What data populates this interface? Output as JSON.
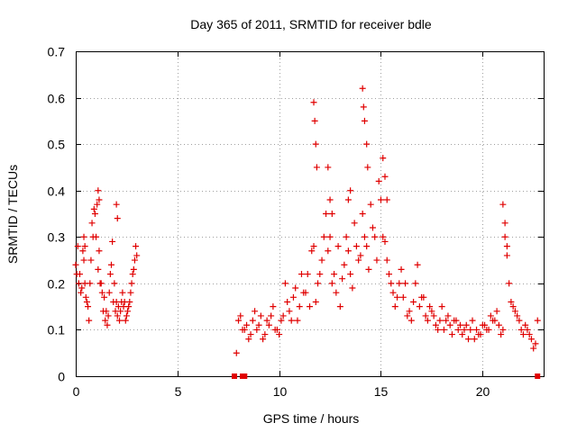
{
  "chart_data": {
    "type": "scatter",
    "title": "Day 365 of 2011, SRMTID for receiver bdle",
    "xlabel": "GPS time / hours",
    "ylabel": "SRMTID / TECUs",
    "xlim": [
      0,
      23
    ],
    "ylim": [
      0,
      0.7
    ],
    "xticks": [
      0,
      5,
      10,
      15,
      20
    ],
    "yticks": [
      0,
      0.1,
      0.2,
      0.3,
      0.4,
      0.5,
      0.6,
      0.7
    ],
    "xtick_labels": [
      "0",
      "5",
      "10",
      "15",
      "20"
    ],
    "ytick_labels": [
      "0",
      "0.1",
      "0.2",
      "0.3",
      "0.4",
      "0.5",
      "0.6",
      "0.7"
    ],
    "grid": true,
    "marker": "plus",
    "color": "#e00000",
    "series": [
      {
        "name": "SRMTID",
        "x": [
          0.0,
          0.1,
          0.2,
          0.3,
          0.4,
          0.5,
          0.6,
          0.7,
          0.8,
          0.9,
          1.0,
          1.1,
          1.2,
          1.3,
          1.4,
          1.5,
          1.6,
          1.7,
          1.8,
          1.9,
          2.0,
          2.1,
          2.2,
          2.3,
          2.4,
          2.5,
          2.6,
          2.7,
          2.8,
          2.9,
          3.0,
          0.05,
          0.15,
          0.25,
          0.35,
          0.45,
          0.55,
          0.65,
          0.75,
          0.85,
          0.95,
          1.05,
          1.15,
          1.25,
          1.35,
          1.45,
          1.55,
          1.65,
          1.75,
          1.85,
          1.95,
          2.05,
          2.15,
          2.25,
          2.35,
          2.45,
          2.55,
          2.65,
          2.75,
          2.85,
          2.95,
          7.9,
          8.1,
          8.3,
          8.5,
          8.7,
          8.9,
          9.1,
          9.3,
          9.5,
          9.7,
          9.9,
          10.1,
          10.3,
          10.5,
          10.7,
          10.9,
          11.1,
          11.3,
          11.5,
          11.7,
          11.9,
          12.1,
          12.3,
          12.5,
          12.7,
          12.9,
          13.1,
          13.3,
          13.5,
          13.7,
          13.9,
          14.1,
          14.3,
          14.5,
          14.7,
          14.9,
          15.1,
          15.3,
          15.5,
          15.7,
          15.9,
          16.1,
          16.3,
          16.5,
          16.7,
          16.9,
          17.1,
          17.3,
          17.5,
          17.7,
          17.9,
          18.1,
          18.3,
          18.5,
          18.7,
          18.9,
          19.1,
          19.3,
          19.5,
          19.7,
          19.9,
          20.1,
          20.3,
          20.5,
          20.7,
          20.9,
          21.1,
          21.3,
          21.5,
          21.7,
          21.9,
          22.1,
          22.3,
          22.5,
          22.7,
          8.0,
          8.2,
          8.4,
          8.6,
          8.8,
          9.0,
          9.2,
          9.4,
          9.6,
          9.8,
          10.0,
          10.2,
          10.4,
          10.6,
          10.8,
          11.0,
          11.2,
          11.4,
          11.6,
          11.8,
          12.0,
          12.2,
          12.4,
          12.6,
          12.8,
          13.0,
          13.2,
          13.4,
          13.6,
          13.8,
          14.0,
          14.2,
          14.4,
          14.6,
          14.8,
          15.0,
          15.2,
          15.4,
          15.6,
          15.8,
          16.0,
          16.2,
          16.4,
          16.6,
          16.8,
          17.0,
          17.2,
          17.4,
          17.6,
          17.8,
          18.0,
          18.2,
          18.4,
          18.6,
          18.8,
          19.0,
          19.2,
          19.4,
          19.6,
          19.8,
          20.0,
          20.2,
          20.4,
          20.6,
          20.8,
          21.0,
          21.2,
          21.4,
          21.6,
          21.8,
          22.0,
          22.2,
          22.4,
          22.6,
          11.7,
          11.75,
          11.8,
          11.85,
          12.4,
          12.5,
          12.6,
          13.4,
          13.5,
          14.1,
          14.15,
          14.2,
          14.3,
          14.35,
          15.1,
          15.2,
          15.3,
          21.0,
          21.1,
          21.2,
          1.1,
          1.15,
          2.0,
          2.05,
          0.4,
          0.45
        ],
        "y": [
          0.24,
          0.28,
          0.22,
          0.19,
          0.25,
          0.17,
          0.15,
          0.2,
          0.33,
          0.36,
          0.3,
          0.23,
          0.2,
          0.18,
          0.17,
          0.14,
          0.13,
          0.22,
          0.29,
          0.2,
          0.16,
          0.15,
          0.14,
          0.18,
          0.16,
          0.13,
          0.15,
          0.18,
          0.22,
          0.25,
          0.26,
          0.22,
          0.2,
          0.18,
          0.27,
          0.2,
          0.16,
          0.12,
          0.25,
          0.3,
          0.35,
          0.37,
          0.27,
          0.2,
          0.14,
          0.12,
          0.11,
          0.18,
          0.24,
          0.16,
          0.14,
          0.13,
          0.12,
          0.16,
          0.15,
          0.12,
          0.14,
          0.16,
          0.2,
          0.23,
          0.28,
          0.05,
          0.13,
          0.1,
          0.08,
          0.12,
          0.1,
          0.13,
          0.09,
          0.11,
          0.15,
          0.1,
          0.12,
          0.2,
          0.14,
          0.17,
          0.12,
          0.22,
          0.18,
          0.15,
          0.28,
          0.2,
          0.25,
          0.35,
          0.3,
          0.22,
          0.28,
          0.21,
          0.3,
          0.22,
          0.33,
          0.25,
          0.35,
          0.28,
          0.37,
          0.3,
          0.42,
          0.3,
          0.25,
          0.2,
          0.15,
          0.2,
          0.17,
          0.13,
          0.12,
          0.2,
          0.15,
          0.17,
          0.12,
          0.14,
          0.11,
          0.12,
          0.1,
          0.13,
          0.09,
          0.12,
          0.11,
          0.1,
          0.08,
          0.12,
          0.1,
          0.09,
          0.11,
          0.1,
          0.12,
          0.14,
          0.09,
          0.3,
          0.2,
          0.15,
          0.13,
          0.1,
          0.11,
          0.09,
          0.06,
          0.12,
          0.12,
          0.1,
          0.11,
          0.09,
          0.14,
          0.11,
          0.08,
          0.12,
          0.13,
          0.1,
          0.09,
          0.13,
          0.16,
          0.12,
          0.19,
          0.15,
          0.18,
          0.22,
          0.27,
          0.16,
          0.22,
          0.3,
          0.27,
          0.2,
          0.18,
          0.15,
          0.24,
          0.27,
          0.19,
          0.28,
          0.26,
          0.3,
          0.23,
          0.32,
          0.25,
          0.38,
          0.29,
          0.22,
          0.18,
          0.17,
          0.23,
          0.2,
          0.14,
          0.16,
          0.24,
          0.17,
          0.13,
          0.15,
          0.13,
          0.1,
          0.15,
          0.12,
          0.11,
          0.12,
          0.1,
          0.09,
          0.11,
          0.1,
          0.08,
          0.09,
          0.11,
          0.1,
          0.13,
          0.12,
          0.11,
          0.1,
          0.26,
          0.16,
          0.14,
          0.12,
          0.09,
          0.1,
          0.08,
          0.07,
          0.59,
          0.55,
          0.5,
          0.45,
          0.45,
          0.38,
          0.35,
          0.38,
          0.4,
          0.62,
          0.58,
          0.55,
          0.5,
          0.45,
          0.47,
          0.43,
          0.38,
          0.37,
          0.33,
          0.28,
          0.4,
          0.38,
          0.37,
          0.34,
          0.3,
          0.28
        ]
      },
      {
        "name": "zero-values",
        "x": [
          7.8,
          8.2,
          8.3,
          22.7
        ],
        "y": [
          0,
          0,
          0,
          0
        ]
      }
    ]
  }
}
